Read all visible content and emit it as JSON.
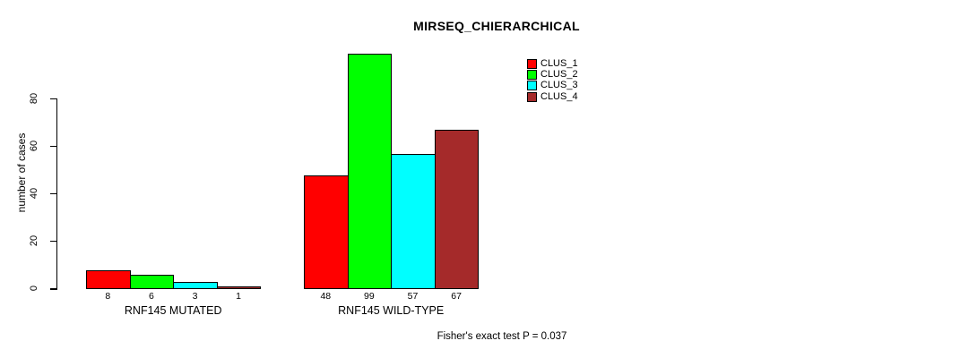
{
  "chart_data": {
    "type": "bar",
    "title": "MIRSEQ_CHIERARCHICAL",
    "xlabel": "",
    "ylabel": "number of cases",
    "ylim": [
      0,
      80
    ],
    "yticks": [
      0,
      20,
      40,
      60,
      80
    ],
    "grid": false,
    "legend_position": "top-right",
    "categories": [
      "RNF145 MUTATED",
      "RNF145 WILD-TYPE"
    ],
    "series": [
      {
        "name": "CLUS_1",
        "color": "#FF0000",
        "values": [
          8,
          48
        ]
      },
      {
        "name": "CLUS_2",
        "color": "#00FF00",
        "values": [
          6,
          99
        ]
      },
      {
        "name": "CLUS_3",
        "color": "#00FFFF",
        "values": [
          3,
          57
        ]
      },
      {
        "name": "CLUS_4",
        "color": "#A52A2A",
        "values": [
          1,
          67
        ]
      }
    ],
    "bar_value_labels": [
      [
        8,
        6,
        3,
        1
      ],
      [
        48,
        99,
        57,
        67
      ]
    ],
    "annotation": "Fisher's exact test P = 0.037"
  }
}
